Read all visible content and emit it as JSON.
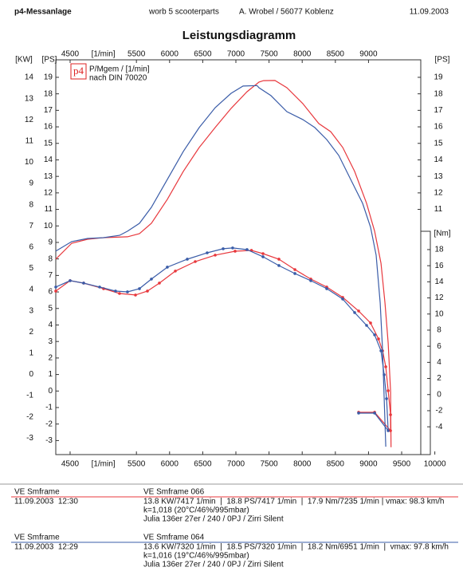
{
  "header": {
    "left": "p4-Messanlage",
    "center1": "worb 5 scooterparts",
    "center2": "A. Wrobel / 56077 Koblenz",
    "right": "11.09.2003"
  },
  "chart_data": {
    "type": "line",
    "title": "Leistungsdiagramm",
    "logo": "p4",
    "legend_line1": "P/Mgem / [1/min]",
    "legend_line2": "nach DIN 70020",
    "x_unit": "[1/min]",
    "y_unit": "[PS]",
    "y2_unit": "[Nm]",
    "y3_unit": "[KW]",
    "xlim": [
      4284,
      9788
    ],
    "xticks": [
      4500,
      5500,
      6000,
      6500,
      7000,
      7500,
      8000,
      8500,
      9000,
      9500,
      10000
    ],
    "ylim": [
      -3.85,
      20.06
    ],
    "yticks": [
      -3,
      -2,
      -1,
      0,
      1,
      2,
      3,
      4,
      5,
      6,
      7,
      8,
      9,
      10,
      11,
      12,
      13,
      14,
      15,
      16,
      17,
      18,
      19
    ],
    "y2lim": [
      -7.45,
      41.56
    ],
    "y2ticks": [
      -4,
      -2,
      0,
      2,
      4,
      6,
      8,
      10,
      12,
      14,
      16,
      18
    ],
    "y3lim": [
      -3.78,
      14.83
    ],
    "y3ticks": [
      -3,
      -2,
      -1,
      0,
      1,
      2,
      3,
      4,
      5,
      6,
      7,
      8,
      9,
      10,
      11,
      12,
      13,
      14
    ],
    "grid": false,
    "series": [
      {
        "name": "VE Smframe 066",
        "label": "VE Smframe",
        "date": "11.09.2003  12:30",
        "color": "#e8383d",
        "stats": "13.8 KW/7417 1/min  |  18.8 PS/7417 1/min  |  17.9 Nm/7235 1/min | vmax: 98.3 km/h",
        "k": "k=1,018 (20°C/46%/995mbar)",
        "setup": "Julia 136er 27er / 240 / 0PJ / Zirri Silent",
        "power": {
          "x": [
            4284,
            4524,
            4764,
            5005,
            5365,
            5546,
            5726,
            5966,
            6207,
            6447,
            6688,
            6928,
            7168,
            7349,
            7417,
            7589,
            7769,
            8010,
            8250,
            8430,
            8611,
            8791,
            8971,
            9092,
            9188,
            9248,
            9296,
            9332,
            9340
          ],
          "values": [
            7.99,
            8.95,
            9.19,
            9.29,
            9.34,
            9.53,
            10.16,
            11.61,
            13.3,
            14.75,
            15.96,
            17.12,
            18.13,
            18.71,
            18.8,
            18.81,
            18.37,
            17.41,
            16.2,
            15.71,
            14.75,
            13.3,
            11.37,
            9.68,
            7.74,
            5.33,
            2.91,
            0,
            -3.4
          ]
        },
        "torque": {
          "x": [
            4284,
            4500,
            4704,
            5005,
            5245,
            5486,
            5666,
            5846,
            6087,
            6387,
            6688,
            6988,
            7235,
            7409,
            7649,
            7890,
            8130,
            8370,
            8611,
            8851,
            9031,
            9151,
            9212,
            9260,
            9296,
            9332,
            9332,
            9092,
            8851
          ],
          "values": [
            12.85,
            14.14,
            13.84,
            13.15,
            12.55,
            12.36,
            12.85,
            13.84,
            15.33,
            16.51,
            17.31,
            17.8,
            17.9,
            17.5,
            16.81,
            15.52,
            14.34,
            13.35,
            12.06,
            10.38,
            8.89,
            6.91,
            5.43,
            3.45,
            0.48,
            -2.5,
            -4.48,
            -2.2,
            -2.2
          ]
        }
      },
      {
        "name": "VE Smframe 064",
        "label": "VE Smframe",
        "date": "11.09.2003  12:29",
        "color": "#3a5ca8",
        "stats": "13.6 KW/7320 1/min  |  18.5 PS/7320 1/min  |  18.2 Nm/6951 1/min  |  vmax: 97.8 km/h",
        "k": "k=1,016 (19°C/46%/995mbar)",
        "setup": "Julia 136er 27er / 240 / 0PJ / Zirri Silent",
        "power": {
          "x": [
            4284,
            4524,
            4764,
            5005,
            5245,
            5365,
            5546,
            5726,
            5966,
            6207,
            6447,
            6688,
            6928,
            7108,
            7320,
            7349,
            7529,
            7769,
            8010,
            8190,
            8370,
            8551,
            8731,
            8911,
            9031,
            9115,
            9176,
            9212,
            9236,
            9260
          ],
          "values": [
            8.47,
            9.05,
            9.24,
            9.29,
            9.43,
            9.68,
            10.16,
            11.13,
            12.82,
            14.51,
            15.96,
            17.16,
            18.03,
            18.47,
            18.5,
            18.37,
            17.89,
            16.92,
            16.44,
            15.96,
            15.23,
            14.27,
            12.82,
            11.37,
            9.92,
            8.23,
            5.33,
            2.43,
            -0.47,
            -3.37
          ]
        },
        "torque": {
          "x": [
            4284,
            4500,
            4704,
            4945,
            5185,
            5365,
            5546,
            5726,
            5966,
            6267,
            6567,
            6808,
            6951,
            7168,
            7409,
            7649,
            7890,
            8130,
            8370,
            8611,
            8791,
            8971,
            9092,
            9188,
            9236,
            9272,
            9296,
            9092,
            8851
          ],
          "values": [
            13.35,
            14.14,
            13.84,
            13.35,
            12.85,
            12.75,
            13.15,
            14.34,
            15.82,
            16.81,
            17.6,
            18.1,
            18.2,
            18.0,
            17.11,
            16.02,
            15.03,
            14.14,
            13.15,
            11.86,
            10.18,
            8.59,
            7.41,
            5.43,
            2.46,
            -0.51,
            -4.48,
            -2.3,
            -2.3
          ]
        }
      }
    ]
  }
}
